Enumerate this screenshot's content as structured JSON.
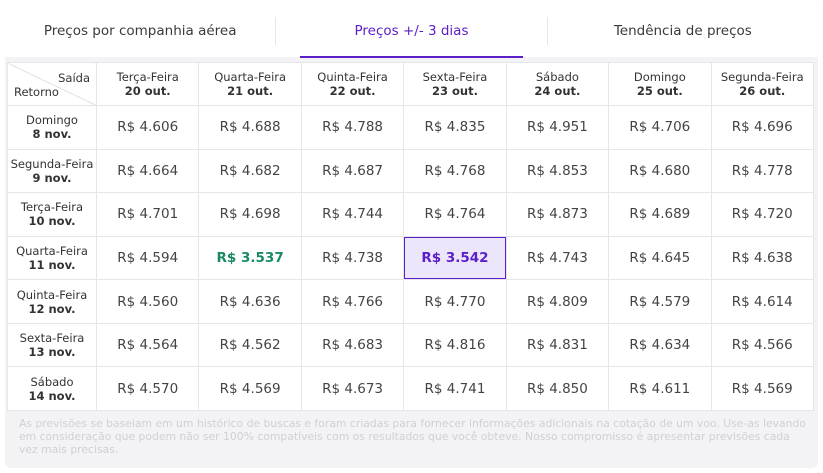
{
  "tabs": [
    {
      "label": "Preços por companhia aérea",
      "active": false
    },
    {
      "label": "Preços +/- 3 dias",
      "active": true
    },
    {
      "label": "Tendência de preços",
      "active": false
    }
  ],
  "grid": {
    "corner_top": "Saída",
    "corner_bottom": "Retorno",
    "columns": [
      {
        "day": "Terça-Feira",
        "date": "20 out."
      },
      {
        "day": "Quarta-Feira",
        "date": "21 out."
      },
      {
        "day": "Quinta-Feira",
        "date": "22 out."
      },
      {
        "day": "Sexta-Feira",
        "date": "23 out."
      },
      {
        "day": "Sábado",
        "date": "24 out."
      },
      {
        "day": "Domingo",
        "date": "25 out."
      },
      {
        "day": "Segunda-Feira",
        "date": "26 out."
      }
    ],
    "rows": [
      {
        "day": "Domingo",
        "date": "8 nov.",
        "prices": [
          "R$ 4.606",
          "R$ 4.688",
          "R$ 4.788",
          "R$ 4.835",
          "R$ 4.951",
          "R$ 4.706",
          "R$ 4.696"
        ]
      },
      {
        "day": "Segunda-Feira",
        "date": "9 nov.",
        "prices": [
          "R$ 4.664",
          "R$ 4.682",
          "R$ 4.687",
          "R$ 4.768",
          "R$ 4.853",
          "R$ 4.680",
          "R$ 4.778"
        ]
      },
      {
        "day": "Terça-Feira",
        "date": "10 nov.",
        "prices": [
          "R$ 4.701",
          "R$ 4.698",
          "R$ 4.744",
          "R$ 4.764",
          "R$ 4.873",
          "R$ 4.689",
          "R$ 4.720"
        ]
      },
      {
        "day": "Quarta-Feira",
        "date": "11 nov.",
        "prices": [
          "R$ 4.594",
          "R$ 3.537",
          "R$ 4.738",
          "R$ 3.542",
          "R$ 4.743",
          "R$ 4.645",
          "R$ 4.638"
        ]
      },
      {
        "day": "Quinta-Feira",
        "date": "12 nov.",
        "prices": [
          "R$ 4.560",
          "R$ 4.636",
          "R$ 4.766",
          "R$ 4.770",
          "R$ 4.809",
          "R$ 4.579",
          "R$ 4.614"
        ]
      },
      {
        "day": "Sexta-Feira",
        "date": "13 nov.",
        "prices": [
          "R$ 4.564",
          "R$ 4.562",
          "R$ 4.683",
          "R$ 4.816",
          "R$ 4.831",
          "R$ 4.634",
          "R$ 4.566"
        ]
      },
      {
        "day": "Sábado",
        "date": "14 nov.",
        "prices": [
          "R$ 4.570",
          "R$ 4.569",
          "R$ 4.673",
          "R$ 4.741",
          "R$ 4.850",
          "R$ 4.611",
          "R$ 4.569"
        ]
      }
    ],
    "lowest_cell": {
      "row": 3,
      "col": 1
    },
    "selected_cell": {
      "row": 3,
      "col": 3
    }
  },
  "note": "As previsões se baseiam em um histórico de buscas e foram criadas para fornecer informações adicionais na cotação de um voo. Use-as levando em consideração que podem não ser 100% compatíveis com os resultados que você obteve. Nosso compromisso é apresentar previsões cada vez mais precisas.",
  "colors": {
    "accent": "#5b1fc7",
    "lowest": "#1a8a63",
    "selected_bg": "#ece6fb"
  }
}
